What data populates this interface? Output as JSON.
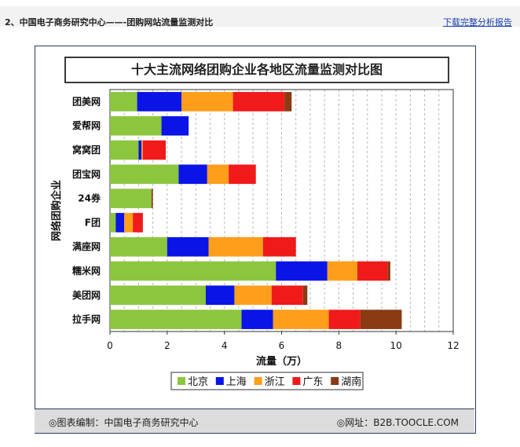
{
  "header": {
    "title": "2、中国电子商务研究中心——-团购网站流量监测对比",
    "link": "下载完整分析报告"
  },
  "footer": {
    "source": "◎图表编制：中国电子商务研究中心",
    "site": "◎网址：B2B.TOOCLE.COM"
  },
  "chart_data": {
    "type": "bar",
    "orientation": "horizontal",
    "stacked": true,
    "title": "十大主流网络团购企业各地区流量监测对比图",
    "xlabel": "流量（万）",
    "ylabel": "网络团购企业",
    "xlim": [
      0,
      12
    ],
    "xticks": [
      0,
      2,
      4,
      6,
      8,
      10,
      12
    ],
    "grid": "vertical dashed",
    "legend_position": "bottom",
    "categories": [
      "团美网",
      "爱帮网",
      "窝窝团",
      "团宝网",
      "24券",
      "F团",
      "满座网",
      "糯米网",
      "美团网",
      "拉手网"
    ],
    "series": [
      {
        "name": "北京",
        "color": "#8cc63f",
        "values": [
          0.95,
          1.8,
          1.0,
          2.4,
          1.45,
          0.2,
          2.0,
          5.8,
          3.35,
          4.6
        ]
      },
      {
        "name": "上海",
        "color": "#0a14e6",
        "values": [
          1.55,
          0.95,
          0.1,
          1.0,
          0.0,
          0.3,
          1.45,
          1.8,
          1.0,
          1.1
        ]
      },
      {
        "name": "浙江",
        "color": "#ff9e1b",
        "values": [
          1.8,
          0.0,
          0.05,
          0.75,
          0.0,
          0.3,
          1.9,
          1.05,
          1.3,
          1.95
        ]
      },
      {
        "name": "广东",
        "color": "#f01a1a",
        "values": [
          1.8,
          0.0,
          0.8,
          0.95,
          0.0,
          0.35,
          1.15,
          1.05,
          1.1,
          1.1
        ]
      },
      {
        "name": "湖南",
        "color": "#8b3a14",
        "values": [
          0.25,
          0.0,
          0.0,
          0.0,
          0.05,
          0.0,
          0.0,
          0.1,
          0.15,
          1.45
        ]
      }
    ]
  }
}
